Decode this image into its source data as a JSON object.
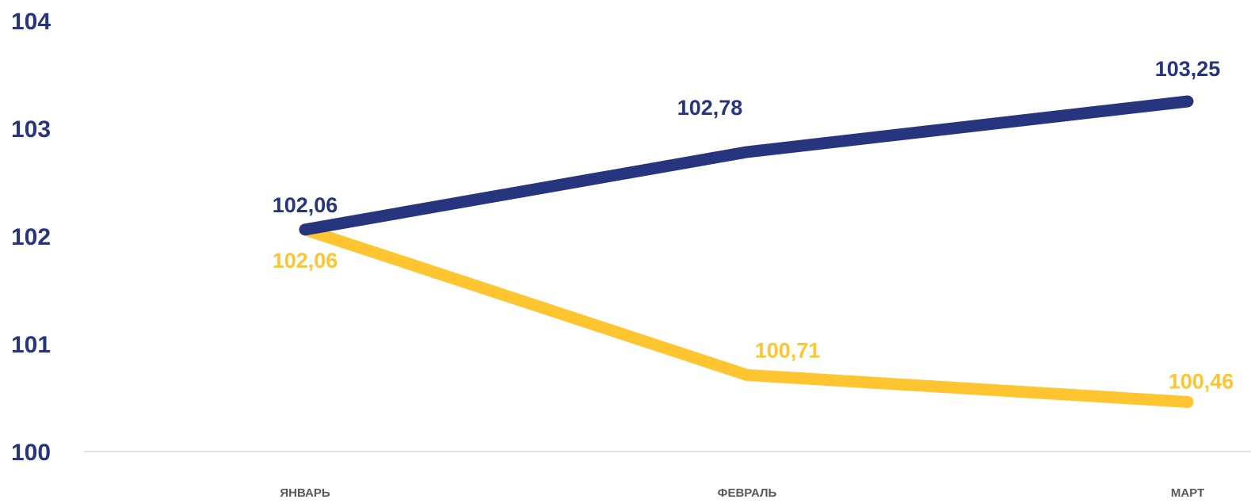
{
  "chart_data": {
    "type": "line",
    "categories": [
      "ЯНВАРЬ",
      "ФЕВРАЛЬ",
      "МАРТ"
    ],
    "series": [
      {
        "values": [
          102.06,
          102.78,
          103.25
        ],
        "labels": [
          "102,06",
          "102,78",
          "103,25"
        ],
        "color": "#27357E"
      },
      {
        "values": [
          102.06,
          100.71,
          100.46
        ],
        "labels": [
          "102,06",
          "100,71",
          "100,46"
        ],
        "color": "#FFC530"
      }
    ],
    "ylim": [
      100,
      104
    ],
    "yticks": [
      100,
      101,
      102,
      103,
      104
    ],
    "ytick_color": "#27357E",
    "xtick_color": "#595959",
    "axis_line_color": "#D9D9D9",
    "grid": false,
    "title": "",
    "xlabel": "",
    "ylabel": ""
  }
}
